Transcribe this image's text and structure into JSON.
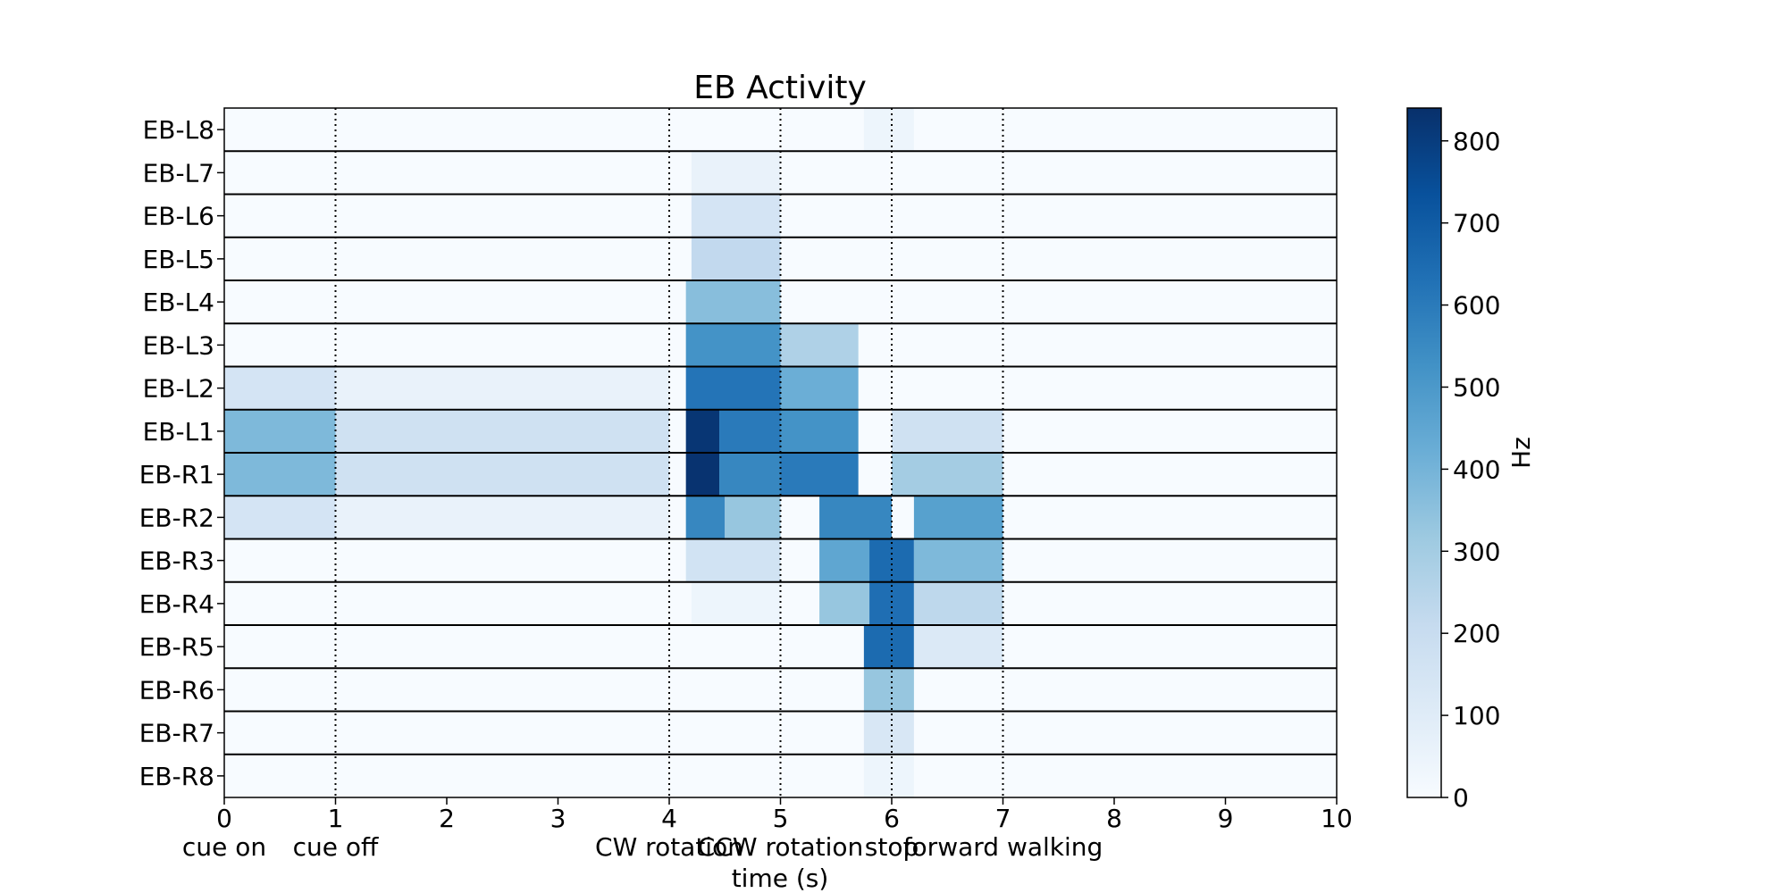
{
  "chart_data": {
    "type": "heatmap",
    "title": "EB Activity",
    "xlabel": "time (s)",
    "ylabel": "",
    "xlim": [
      0,
      10
    ],
    "x_ticks": [
      "0",
      "1",
      "2",
      "3",
      "4",
      "5",
      "6",
      "7",
      "8",
      "9",
      "10"
    ],
    "rows": [
      "EB-L8",
      "EB-L7",
      "EB-L6",
      "EB-L5",
      "EB-L4",
      "EB-L3",
      "EB-L2",
      "EB-L1",
      "EB-R1",
      "EB-R2",
      "EB-R3",
      "EB-R4",
      "EB-R5",
      "EB-R6",
      "EB-R7",
      "EB-R8"
    ],
    "events": [
      {
        "t": 0,
        "label": "cue on",
        "line": false
      },
      {
        "t": 1,
        "label": "cue off",
        "line": true
      },
      {
        "t": 4,
        "label": "CW rotation",
        "line": true
      },
      {
        "t": 5,
        "label": "CCW rotation",
        "line": true
      },
      {
        "t": 6,
        "label": "stop",
        "line": true
      },
      {
        "t": 7,
        "label": "forward walking",
        "line": true
      }
    ],
    "activity_blobs": [
      {
        "row": "EB-L2",
        "t_start": 0,
        "t_end": 1,
        "hz": 150
      },
      {
        "row": "EB-L1",
        "t_start": 0,
        "t_end": 1,
        "hz": 380
      },
      {
        "row": "EB-R1",
        "t_start": 0,
        "t_end": 1,
        "hz": 380
      },
      {
        "row": "EB-R2",
        "t_start": 0,
        "t_end": 1,
        "hz": 150
      },
      {
        "row": "EB-L2",
        "t_start": 1,
        "t_end": 4,
        "hz": 60
      },
      {
        "row": "EB-L1",
        "t_start": 1,
        "t_end": 4,
        "hz": 170
      },
      {
        "row": "EB-R1",
        "t_start": 1,
        "t_end": 4,
        "hz": 170
      },
      {
        "row": "EB-R2",
        "t_start": 1,
        "t_end": 4,
        "hz": 60
      },
      {
        "row": "EB-L7",
        "t_start": 4.2,
        "t_end": 5.0,
        "hz": 60
      },
      {
        "row": "EB-L6",
        "t_start": 4.2,
        "t_end": 5.0,
        "hz": 150
      },
      {
        "row": "EB-L5",
        "t_start": 4.2,
        "t_end": 5.0,
        "hz": 220
      },
      {
        "row": "EB-L4",
        "t_start": 4.15,
        "t_end": 5.0,
        "hz": 360
      },
      {
        "row": "EB-L3",
        "t_start": 4.15,
        "t_end": 5.0,
        "hz": 520
      },
      {
        "row": "EB-L2",
        "t_start": 4.15,
        "t_end": 5.0,
        "hz": 620
      },
      {
        "row": "EB-L1",
        "t_start": 4.15,
        "t_end": 4.45,
        "hz": 820
      },
      {
        "row": "EB-L1",
        "t_start": 4.45,
        "t_end": 5.0,
        "hz": 600
      },
      {
        "row": "EB-R1",
        "t_start": 4.15,
        "t_end": 4.45,
        "hz": 830
      },
      {
        "row": "EB-R1",
        "t_start": 4.45,
        "t_end": 5.0,
        "hz": 560
      },
      {
        "row": "EB-R2",
        "t_start": 4.15,
        "t_end": 4.5,
        "hz": 560
      },
      {
        "row": "EB-R2",
        "t_start": 4.5,
        "t_end": 5.0,
        "hz": 330
      },
      {
        "row": "EB-R3",
        "t_start": 4.15,
        "t_end": 5.0,
        "hz": 160
      },
      {
        "row": "EB-R4",
        "t_start": 4.2,
        "t_end": 5.0,
        "hz": 40
      },
      {
        "row": "EB-L3",
        "t_start": 5.0,
        "t_end": 5.7,
        "hz": 270
      },
      {
        "row": "EB-L2",
        "t_start": 5.0,
        "t_end": 5.7,
        "hz": 420
      },
      {
        "row": "EB-L1",
        "t_start": 5.0,
        "t_end": 5.7,
        "hz": 520
      },
      {
        "row": "EB-R1",
        "t_start": 5.0,
        "t_end": 5.7,
        "hz": 600
      },
      {
        "row": "EB-R2",
        "t_start": 5.35,
        "t_end": 6.0,
        "hz": 560
      },
      {
        "row": "EB-R3",
        "t_start": 5.35,
        "t_end": 6.0,
        "hz": 450
      },
      {
        "row": "EB-R4",
        "t_start": 5.35,
        "t_end": 6.0,
        "hz": 330
      },
      {
        "row": "EB-R3",
        "t_start": 5.8,
        "t_end": 6.2,
        "hz": 650
      },
      {
        "row": "EB-R4",
        "t_start": 5.8,
        "t_end": 6.2,
        "hz": 640
      },
      {
        "row": "EB-R5",
        "t_start": 5.75,
        "t_end": 6.2,
        "hz": 650
      },
      {
        "row": "EB-R6",
        "t_start": 5.75,
        "t_end": 6.2,
        "hz": 330
      },
      {
        "row": "EB-R7",
        "t_start": 5.75,
        "t_end": 6.2,
        "hz": 130
      },
      {
        "row": "EB-R8",
        "t_start": 5.75,
        "t_end": 6.2,
        "hz": 40
      },
      {
        "row": "EB-L8",
        "t_start": 5.75,
        "t_end": 6.2,
        "hz": 40
      },
      {
        "row": "EB-L1",
        "t_start": 6.0,
        "t_end": 7.0,
        "hz": 170
      },
      {
        "row": "EB-R1",
        "t_start": 6.0,
        "t_end": 7.0,
        "hz": 300
      },
      {
        "row": "EB-R2",
        "t_start": 6.2,
        "t_end": 7.0,
        "hz": 470
      },
      {
        "row": "EB-R3",
        "t_start": 6.2,
        "t_end": 7.0,
        "hz": 380
      },
      {
        "row": "EB-R4",
        "t_start": 6.2,
        "t_end": 7.0,
        "hz": 230
      },
      {
        "row": "EB-R5",
        "t_start": 6.2,
        "t_end": 7.0,
        "hz": 120
      }
    ],
    "colorbar": {
      "label": "Hz",
      "min": 0,
      "max": 840,
      "ticks": [
        "0",
        "100",
        "200",
        "300",
        "400",
        "500",
        "600",
        "700",
        "800"
      ],
      "colors": [
        "#f7fbff",
        "#deebf7",
        "#c6dbef",
        "#9ecae1",
        "#6baed6",
        "#4292c6",
        "#2171b5",
        "#08519c",
        "#08306b"
      ]
    }
  }
}
